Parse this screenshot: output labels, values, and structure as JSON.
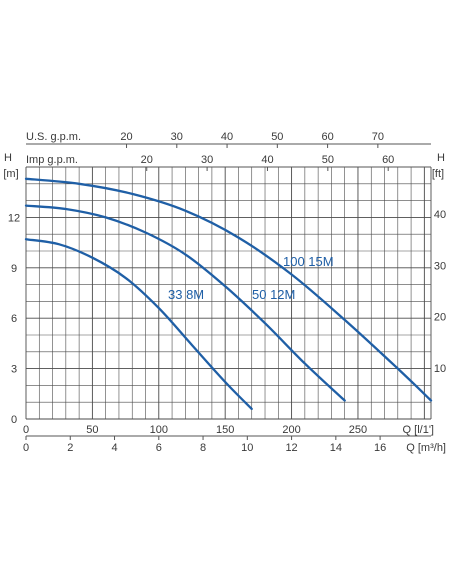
{
  "chart_data": {
    "type": "line",
    "title": "",
    "grid": true,
    "x_axis_bottom_primary": {
      "label": "Q [l/1']",
      "ticks": [
        0,
        50,
        100,
        150,
        200,
        250
      ],
      "range": [
        0,
        305
      ]
    },
    "x_axis_bottom_secondary": {
      "label": "Q [m³/h]",
      "ticks": [
        0,
        2,
        4,
        6,
        8,
        10,
        12,
        14,
        16
      ]
    },
    "x_axis_top_usgpm": {
      "label": "U.S. g.p.m.",
      "ticks": [
        20,
        30,
        40,
        50,
        60,
        70
      ]
    },
    "x_axis_top_impgpm": {
      "label": "Imp g.p.m.",
      "ticks": [
        20,
        30,
        40,
        50,
        60
      ]
    },
    "y_axis_left": {
      "label_symbol": "H",
      "label_unit": "[m]",
      "ticks": [
        0,
        3,
        6,
        9,
        12
      ],
      "range": [
        0,
        15
      ]
    },
    "y_axis_right": {
      "label_symbol": "H",
      "label_unit": "[ft]",
      "ticks": [
        10,
        20,
        30,
        40
      ]
    },
    "series": [
      {
        "name": "33 8M",
        "x": [
          0,
          25,
          50,
          75,
          100,
          125,
          150,
          170
        ],
        "y": [
          10.7,
          10.4,
          9.6,
          8.4,
          6.6,
          4.4,
          2.2,
          0.6
        ]
      },
      {
        "name": "50 12M",
        "x": [
          0,
          30,
          60,
          90,
          120,
          150,
          180,
          210,
          240
        ],
        "y": [
          12.7,
          12.5,
          12.0,
          11.1,
          9.8,
          7.9,
          5.7,
          3.3,
          1.1
        ]
      },
      {
        "name": "100 15M",
        "x": [
          0,
          40,
          80,
          120,
          160,
          200,
          240,
          280,
          305
        ],
        "y": [
          14.3,
          14.0,
          13.4,
          12.4,
          10.8,
          8.6,
          5.9,
          3.0,
          1.1
        ]
      }
    ],
    "colors": {
      "curve": "#1f5fa6",
      "grid": "#4a4a4a",
      "text": "#3a3a3a"
    }
  }
}
